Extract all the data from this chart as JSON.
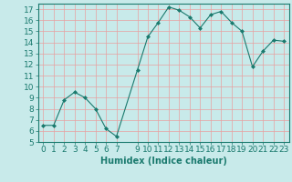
{
  "x": [
    0,
    1,
    2,
    3,
    4,
    5,
    6,
    7,
    9,
    10,
    11,
    12,
    13,
    14,
    15,
    16,
    17,
    18,
    19,
    20,
    21,
    22,
    23
  ],
  "y": [
    6.5,
    6.5,
    8.8,
    9.5,
    9.0,
    8.0,
    6.2,
    5.5,
    11.5,
    14.5,
    15.8,
    17.2,
    16.9,
    16.3,
    15.3,
    16.5,
    16.8,
    15.8,
    15.0,
    11.8,
    13.2,
    14.2,
    14.1
  ],
  "line_color": "#1a7a6e",
  "marker": "D",
  "marker_size": 2.0,
  "bg_color": "#c8eaea",
  "grid_color": "#e8a0a0",
  "xlabel": "Humidex (Indice chaleur)",
  "ylim": [
    5,
    17.5
  ],
  "yticks": [
    5,
    6,
    7,
    8,
    9,
    10,
    11,
    12,
    13,
    14,
    15,
    16,
    17
  ],
  "xticks": [
    0,
    1,
    2,
    3,
    4,
    5,
    6,
    7,
    9,
    10,
    11,
    12,
    13,
    14,
    15,
    16,
    17,
    18,
    19,
    20,
    21,
    22,
    23
  ],
  "xlim": [
    -0.5,
    23.5
  ],
  "tick_color": "#1a7a6e",
  "label_color": "#1a7a6e",
  "font_size": 6.5
}
